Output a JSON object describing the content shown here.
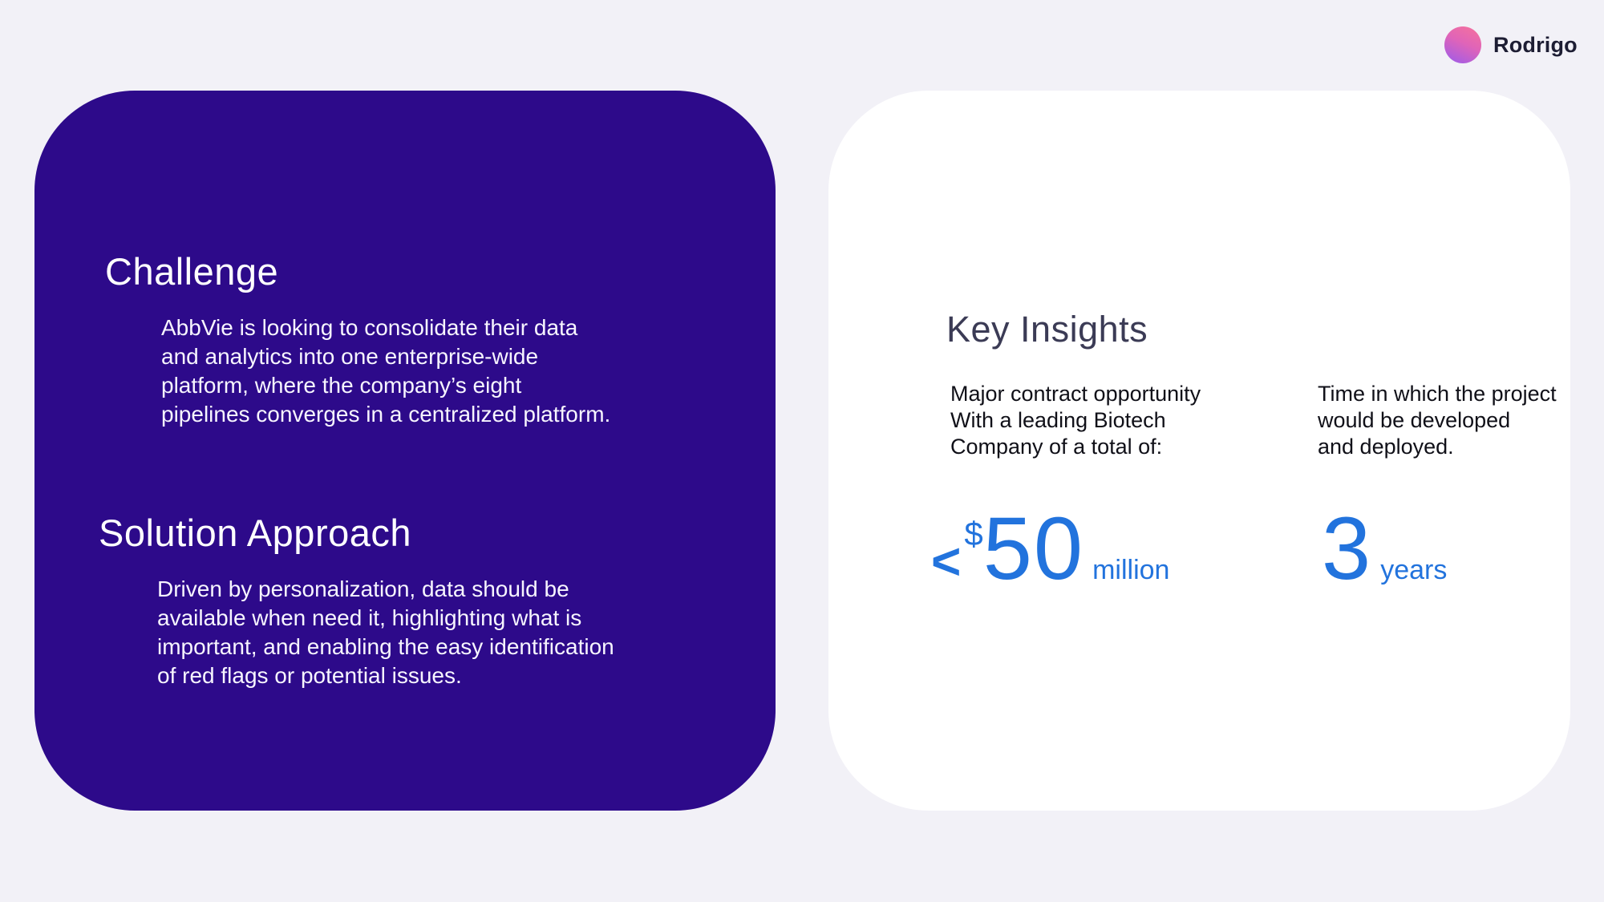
{
  "colors": {
    "background": "#f2f1f7",
    "card_purple": "#2d0a8a",
    "accent_blue": "#2273dd",
    "heading_dark": "#3b3b55",
    "avatar_gradient": [
      "#f4719e",
      "#9a5bec"
    ]
  },
  "user_badge": {
    "name": "Rodrigo",
    "avatar": "gradient-circle-avatar"
  },
  "challenge_card": {
    "challenge": {
      "title": "Challenge",
      "body": "AbbVie is looking to consolidate their data\nand analytics into one enterprise-wide\nplatform, where the company’s eight\npipelines converges in a centralized platform."
    },
    "solution": {
      "title": "Solution Approach",
      "body": "Driven by personalization, data should be\navailable when need it, highlighting what is\nimportant, and enabling the easy identification\nof red flags or potential issues."
    }
  },
  "insights_card": {
    "title": "Key Insights",
    "stats": [
      {
        "description": "Major contract opportunity\nWith a leading Biotech\nCompany of a total of:",
        "prefix": "<",
        "currency": "$",
        "value": "50",
        "unit": "million"
      },
      {
        "description": "Time in which the project\nwould be developed\nand deployed.",
        "value": "3",
        "unit": "years"
      }
    ]
  }
}
